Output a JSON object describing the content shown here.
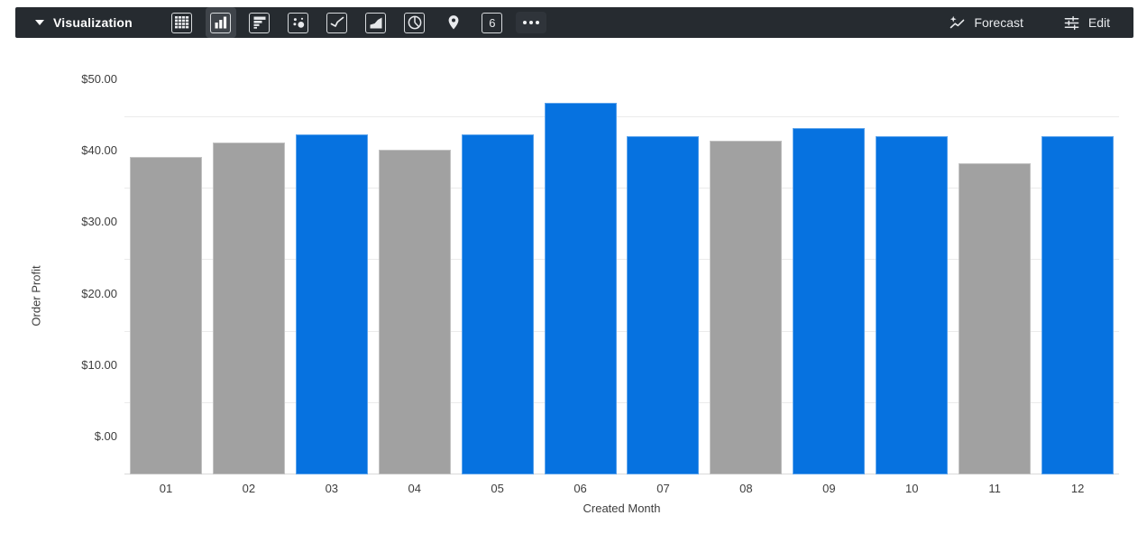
{
  "toolbar": {
    "title": "Visualization",
    "viz_types": [
      "table",
      "column",
      "bar",
      "scatter",
      "line",
      "area",
      "pie",
      "map",
      "single-value",
      "more"
    ],
    "selected_viz": "column",
    "single_value_glyph": "6",
    "forecast_label": "Forecast",
    "edit_label": "Edit"
  },
  "colors": {
    "toolbar_bg": "#262b30",
    "selected_viz_bg": "#3f444a",
    "icon": "#e8eaed",
    "bar_blue": "#0672e0",
    "bar_gray": "#a1a1a1",
    "gridline": "#ebebeb",
    "axis_line": "#d9d9d9",
    "axis_text": "#3d3d3d"
  },
  "chart_data": {
    "type": "bar",
    "title": "",
    "xlabel": "Created Month",
    "ylabel": "Order Profit",
    "categories": [
      "01",
      "02",
      "03",
      "04",
      "05",
      "06",
      "07",
      "08",
      "09",
      "10",
      "11",
      "12"
    ],
    "values": [
      44.5,
      46.5,
      47.6,
      45.5,
      47.6,
      52.0,
      47.3,
      46.7,
      48.5,
      47.3,
      43.6,
      47.3
    ],
    "series_colors": [
      "gray",
      "gray",
      "blue",
      "gray",
      "blue",
      "blue",
      "blue",
      "gray",
      "blue",
      "blue",
      "gray",
      "blue"
    ],
    "ylim": [
      0,
      52.5
    ],
    "y_ticks": [
      {
        "value": 0,
        "label": "$.00"
      },
      {
        "value": 10,
        "label": "$10.00"
      },
      {
        "value": 20,
        "label": "$20.00"
      },
      {
        "value": 30,
        "label": "$30.00"
      },
      {
        "value": 40,
        "label": "$40.00"
      },
      {
        "value": 50,
        "label": "$50.00"
      }
    ],
    "grid": true,
    "legend": "none"
  }
}
